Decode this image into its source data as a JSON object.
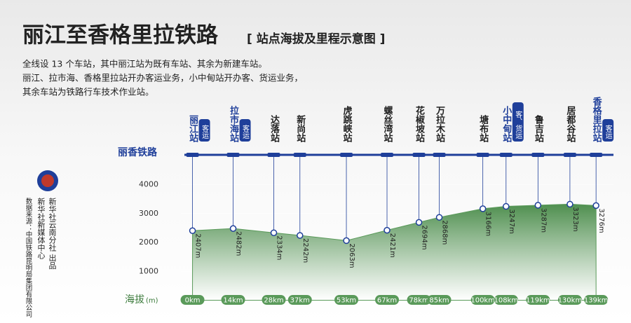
{
  "chart_data": {
    "type": "area",
    "title": "丽江至香格里拉铁路",
    "subtitle": "[ 站点海拔及里程示意图 ]",
    "description": [
      "全线设 13 个车站，其中丽江站为既有车站、其余为新建车站。",
      "丽江、拉市海、香格里拉站开办客运业务，小中甸站开办客、货运业务，",
      "其余车站为铁路行车技术作业站。"
    ],
    "railway": "丽香铁路",
    "y_label": "海拔",
    "y_unit": "(m)",
    "categories": [
      "丽江站",
      "拉市海站",
      "达落站",
      "新尚站",
      "虎跳峡站",
      "螺丝湾站",
      "花椒坡站",
      "万拉木站",
      "塘布站",
      "小中甸站",
      "鲁吉站",
      "居都谷站",
      "香格里拉站"
    ],
    "service": [
      "客运",
      "客运",
      null,
      null,
      null,
      null,
      null,
      null,
      null,
      "客、货运",
      null,
      null,
      "客运"
    ],
    "x": [
      0,
      14,
      28,
      37,
      53,
      67,
      78,
      85,
      100,
      108,
      119,
      130,
      139
    ],
    "values": [
      2407,
      2482,
      2334,
      2242,
      2063,
      2421,
      2694,
      2868,
      3166,
      3247,
      3287,
      3323,
      3276
    ],
    "value_labels": [
      "2407m",
      "2482m",
      "2334m",
      "2242m",
      "2063m",
      "2421m",
      "2694m",
      "2868m",
      "3166m",
      "3247m",
      "3287m",
      "3323m",
      "3276m"
    ],
    "xlim": [
      -4,
      145
    ],
    "xticks": [
      {
        "value": 0,
        "label": "0km"
      },
      {
        "value": 14,
        "label": "14km"
      },
      {
        "value": 28,
        "label": "28km"
      },
      {
        "value": 37,
        "label": "37km"
      },
      {
        "value": 53,
        "label": "53km"
      },
      {
        "value": 67,
        "label": "67km"
      },
      {
        "value": 78,
        "label": "78km"
      },
      {
        "value": 85,
        "label": "85km"
      },
      {
        "value": 100,
        "label": "100km"
      },
      {
        "value": 108,
        "label": "108km"
      },
      {
        "value": 119,
        "label": "119km"
      },
      {
        "value": 130,
        "label": "130km"
      },
      {
        "value": 139,
        "label": "139km"
      }
    ],
    "ylim": [
      0,
      4000
    ],
    "yticks": [
      1000,
      2000,
      3000,
      4000
    ],
    "color": "#5a9a5a"
  },
  "credits": {
    "publisher": "新华社云南分社 出品",
    "center": "新华社新媒体中心",
    "source": "数据来源：中国铁路昆明局集团有限公司"
  }
}
